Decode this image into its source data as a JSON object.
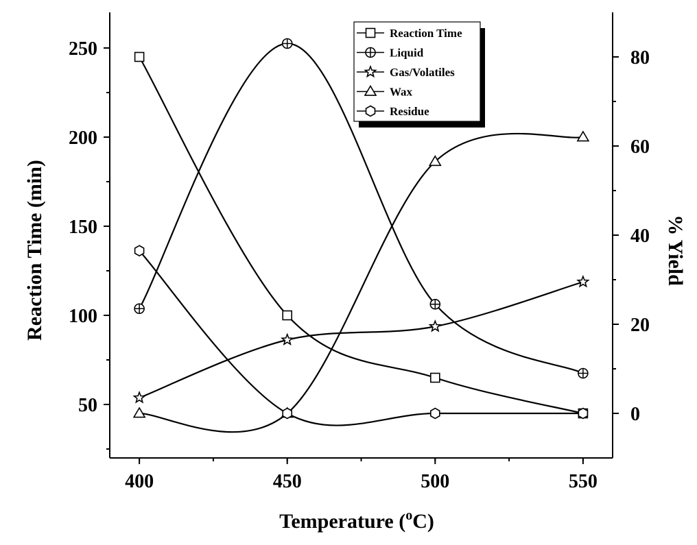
{
  "chart_data": {
    "type": "line",
    "xlabel_prefix": "Temperature (",
    "xlabel_sup": "o",
    "xlabel_suffix": "C)",
    "ylabel_left": "Reaction Time (min)",
    "ylabel_right": "% Yield",
    "x": [
      400,
      450,
      500,
      550
    ],
    "xlim": [
      390,
      560
    ],
    "x_ticks": [
      400,
      450,
      500,
      550
    ],
    "ylim_left": [
      20,
      270
    ],
    "y_ticks_left": [
      50,
      100,
      150,
      200,
      250
    ],
    "ylim_right": [
      -10,
      90
    ],
    "y_ticks_right": [
      0,
      20,
      40,
      60,
      80
    ],
    "legend_position": "top-center",
    "series": [
      {
        "name": "Reaction Time",
        "axis": "left",
        "marker": "square",
        "values": [
          245,
          100,
          65,
          45
        ]
      },
      {
        "name": "Liquid",
        "axis": "right",
        "marker": "circle-plus",
        "values": [
          23.5,
          83,
          24.5,
          9
        ]
      },
      {
        "name": "Gas/Volatiles",
        "axis": "right",
        "marker": "star",
        "values": [
          3.5,
          16.5,
          19.5,
          29.5
        ]
      },
      {
        "name": "Wax",
        "axis": "right",
        "marker": "triangle",
        "values": [
          0,
          0,
          56.5,
          62
        ]
      },
      {
        "name": "Residue",
        "axis": "right",
        "marker": "hexagon",
        "values": [
          36.5,
          0,
          0,
          0
        ]
      }
    ]
  }
}
